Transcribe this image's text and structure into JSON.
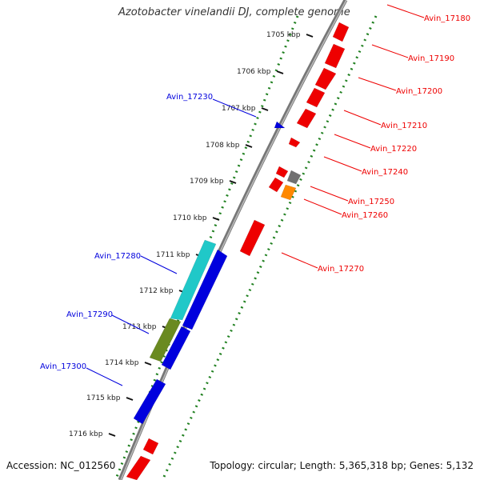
{
  "title": "Azotobacter vinelandii DJ, complete genome",
  "accession_label": "Accession: NC_012560",
  "summary": "Topology: circular; Length: 5,365,318 bp; Genes: 5,132",
  "colors": {
    "forward": "#ee0000",
    "reverse": "#0000dd",
    "ruler_dots": "#208020",
    "backbone": "#888888",
    "gray_gene": "#707070",
    "orange_gene": "#ff8800",
    "cyan_gene": "#20c8c8",
    "olive_gene": "#6a8a20"
  },
  "ticks": [
    "1705 kbp",
    "1706 kbp",
    "1707 kbp",
    "1708 kbp",
    "1709 kbp",
    "1710 kbp",
    "1711 kbp",
    "1712 kbp",
    "1713 kbp",
    "1714 kbp",
    "1715 kbp",
    "1716 kbp"
  ],
  "right_labels": [
    "Avin_17180",
    "Avin_17190",
    "Avin_17200",
    "Avin_17210",
    "Avin_17220",
    "Avin_17240",
    "Avin_17250",
    "Avin_17260",
    "Avin_17270"
  ],
  "left_labels": [
    "Avin_17230",
    "Avin_17280",
    "Avin_17290",
    "Avin_17300"
  ]
}
